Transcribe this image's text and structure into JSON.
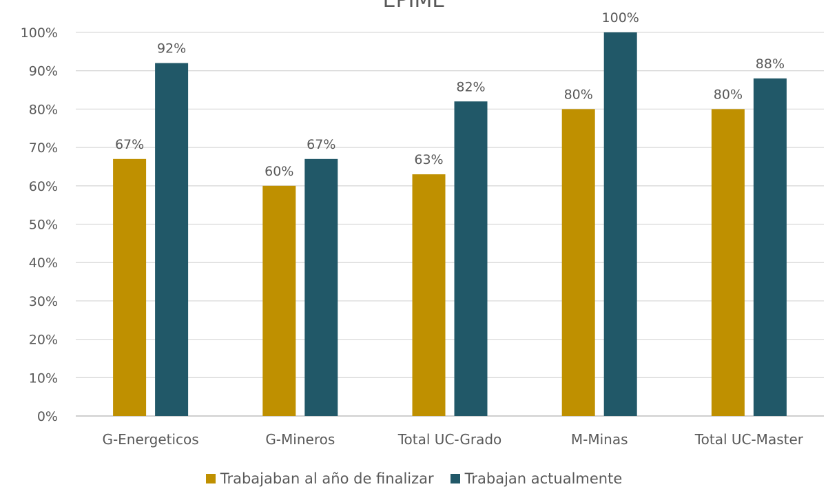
{
  "chart_data": {
    "type": "bar",
    "title": "EPIME",
    "xlabel": "",
    "ylabel": "",
    "categories": [
      "G-Energeticos",
      "G-Mineros",
      "Total UC-Grado",
      "M-Minas",
      "Total UC-Master"
    ],
    "series": [
      {
        "name": "Trabajaban al año de finalizar",
        "values": [
          67,
          60,
          63,
          80,
          80
        ],
        "labels": [
          "67%",
          "60%",
          "63%",
          "80%",
          "80%"
        ],
        "color": "#bf9000"
      },
      {
        "name": "Trabajan actualmente",
        "values": [
          92,
          67,
          82,
          100,
          88
        ],
        "labels": [
          "92%",
          "67%",
          "82%",
          "100%",
          "88%"
        ],
        "color": "#215868"
      }
    ],
    "ylim": [
      0,
      100
    ],
    "yticks": [
      0,
      10,
      20,
      30,
      40,
      50,
      60,
      70,
      80,
      90,
      100
    ],
    "ytick_labels": [
      "0%",
      "10%",
      "20%",
      "30%",
      "40%",
      "50%",
      "60%",
      "70%",
      "80%",
      "90%",
      "100%"
    ],
    "grid": true,
    "legend_position": "bottom",
    "colors": {
      "grid": "#d9d9d9",
      "axis": "#bfbfbf",
      "text": "#595959"
    }
  }
}
